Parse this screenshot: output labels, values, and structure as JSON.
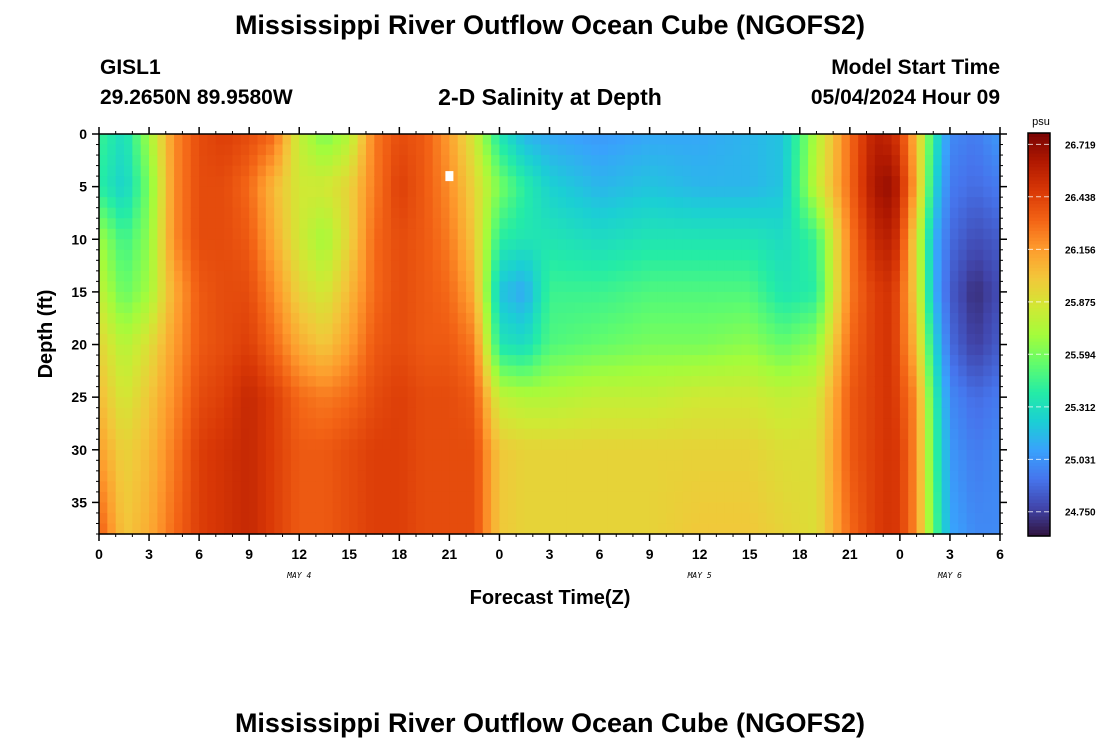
{
  "page": {
    "title": "Mississippi River Outflow Ocean Cube (NGOFS2)",
    "bottom_title": "Mississippi River Outflow Ocean Cube (NGOFS2)",
    "station_id": "GISL1",
    "station_coords": "29.2650N  89.9580W",
    "subtitle": "2-D Salinity at Depth",
    "model_start_label": "Model Start Time",
    "model_start_value": "05/04/2024 Hour 09"
  },
  "chart_data": {
    "type": "heatmap",
    "title": "2-D Salinity at Depth",
    "xlabel": "Forecast Time(Z)",
    "ylabel": "Depth (ft)",
    "x_unit": "hours",
    "xlim": [
      0,
      54
    ],
    "ylim": [
      0,
      38
    ],
    "y_inverted": true,
    "x_ticks": [
      0,
      3,
      6,
      9,
      12,
      15,
      18,
      21,
      24,
      27,
      30,
      33,
      36,
      39,
      42,
      45,
      48,
      51,
      54
    ],
    "x_tick_labels": [
      "0",
      "3",
      "6",
      "9",
      "12",
      "15",
      "18",
      "21",
      "0",
      "3",
      "6",
      "9",
      "12",
      "15",
      "18",
      "21",
      "0",
      "3",
      "6"
    ],
    "y_ticks": [
      0,
      5,
      10,
      15,
      20,
      25,
      30,
      35
    ],
    "y_tick_labels": [
      "0",
      "5",
      "10",
      "15",
      "20",
      "25",
      "30",
      "35"
    ],
    "day_labels": [
      {
        "x": 12,
        "label": "MAY 4"
      },
      {
        "x": 36,
        "label": "MAY 5"
      },
      {
        "x": 51,
        "label": "MAY 6"
      }
    ],
    "colorbar": {
      "unit": "psu",
      "min": 24.62,
      "max": 26.78,
      "ticks": [
        24.75,
        25.031,
        25.312,
        25.594,
        25.875,
        26.156,
        26.438,
        26.719
      ],
      "tick_labels": [
        "24.750",
        "25.031",
        "25.312",
        "25.594",
        "25.875",
        "26.156",
        "26.438",
        "26.719"
      ],
      "colormap": [
        "#30123b",
        "#4145ab",
        "#4675ed",
        "#39a2fc",
        "#1bcfd4",
        "#24eca6",
        "#61fc6c",
        "#a4fc3b",
        "#d1e834",
        "#f3c63a",
        "#fe9b2d",
        "#f36315",
        "#d93806",
        "#b11901",
        "#7a0403"
      ]
    },
    "profile_depths_ft": [
      0,
      5,
      10,
      15,
      20,
      25,
      30,
      38
    ],
    "time_hours": [
      0,
      1.5,
      3,
      4.5,
      6,
      7.5,
      9,
      10.5,
      12,
      13.5,
      15,
      16.5,
      18,
      19.5,
      21,
      22.5,
      24,
      25.5,
      27,
      30,
      33,
      36,
      39,
      41,
      43,
      45,
      46.5,
      47.5,
      48,
      49,
      50,
      51,
      52.5,
      54
    ],
    "salinity_psu": [
      [
        25.45,
        25.4,
        25.7,
        25.8,
        25.95,
        26.05,
        26.15,
        26.35
      ],
      [
        25.3,
        25.25,
        25.45,
        25.55,
        25.75,
        25.85,
        25.95,
        26.0
      ],
      [
        25.7,
        25.6,
        25.65,
        25.7,
        25.9,
        26.0,
        26.05,
        26.1
      ],
      [
        26.2,
        26.2,
        26.2,
        26.1,
        26.15,
        26.2,
        26.25,
        26.3
      ],
      [
        26.4,
        26.4,
        26.4,
        26.35,
        26.35,
        26.4,
        26.45,
        26.45
      ],
      [
        26.45,
        26.4,
        26.4,
        26.4,
        26.4,
        26.45,
        26.5,
        26.5
      ],
      [
        26.4,
        26.3,
        26.35,
        26.4,
        26.45,
        26.55,
        26.55,
        26.55
      ],
      [
        26.3,
        26.05,
        26.1,
        26.2,
        26.3,
        26.45,
        26.45,
        26.45
      ],
      [
        25.8,
        25.85,
        25.85,
        25.95,
        26.1,
        26.3,
        26.35,
        26.35
      ],
      [
        25.6,
        25.85,
        25.7,
        25.85,
        26.0,
        26.25,
        26.35,
        26.35
      ],
      [
        25.75,
        25.95,
        25.95,
        26.05,
        26.15,
        26.3,
        26.4,
        26.4
      ],
      [
        26.25,
        26.25,
        26.3,
        26.3,
        26.35,
        26.4,
        26.45,
        26.45
      ],
      [
        26.4,
        26.45,
        26.4,
        26.4,
        26.4,
        26.45,
        26.45,
        26.45
      ],
      [
        26.35,
        26.35,
        26.35,
        26.35,
        26.35,
        26.4,
        26.4,
        26.4
      ],
      [
        26.15,
        26.2,
        26.25,
        26.3,
        26.35,
        26.4,
        26.4,
        26.4
      ],
      [
        25.85,
        25.95,
        26.0,
        26.1,
        26.25,
        26.35,
        26.4,
        26.4
      ],
      [
        25.35,
        25.6,
        25.4,
        25.2,
        25.35,
        25.8,
        26.0,
        26.0
      ],
      [
        25.15,
        25.4,
        25.35,
        25.1,
        25.3,
        25.75,
        25.95,
        25.95
      ],
      [
        25.1,
        25.25,
        25.35,
        25.45,
        25.5,
        25.75,
        25.95,
        25.95
      ],
      [
        25.05,
        25.15,
        25.3,
        25.45,
        25.55,
        25.8,
        25.95,
        25.95
      ],
      [
        25.1,
        25.2,
        25.35,
        25.5,
        25.6,
        25.8,
        25.95,
        25.95
      ],
      [
        25.1,
        25.15,
        25.35,
        25.5,
        25.6,
        25.85,
        25.95,
        26.0
      ],
      [
        25.15,
        25.15,
        25.35,
        25.5,
        25.65,
        25.85,
        25.95,
        26.0
      ],
      [
        25.2,
        25.2,
        25.3,
        25.35,
        25.55,
        25.8,
        25.9,
        25.95
      ],
      [
        25.75,
        25.8,
        25.45,
        25.4,
        25.65,
        25.85,
        25.9,
        25.9
      ],
      [
        26.3,
        26.3,
        26.25,
        26.25,
        26.3,
        26.35,
        26.35,
        26.3
      ],
      [
        26.6,
        26.65,
        26.55,
        26.45,
        26.45,
        26.45,
        26.45,
        26.45
      ],
      [
        26.55,
        26.7,
        26.6,
        26.5,
        26.5,
        26.5,
        26.5,
        26.5
      ],
      [
        26.45,
        26.55,
        26.45,
        26.35,
        26.35,
        26.4,
        26.45,
        26.45
      ],
      [
        26.05,
        26.1,
        25.9,
        25.95,
        26.05,
        26.2,
        26.2,
        26.2
      ],
      [
        25.4,
        25.3,
        25.15,
        25.15,
        25.3,
        25.45,
        25.5,
        25.55
      ],
      [
        25.0,
        24.95,
        24.9,
        24.85,
        24.9,
        25.0,
        25.05,
        25.1
      ],
      [
        24.95,
        24.9,
        24.8,
        24.7,
        24.75,
        24.9,
        24.95,
        25.0
      ],
      [
        25.05,
        24.95,
        24.85,
        24.8,
        24.85,
        24.95,
        25.0,
        25.0
      ]
    ],
    "marker": {
      "x": 21,
      "y": 4
    }
  }
}
